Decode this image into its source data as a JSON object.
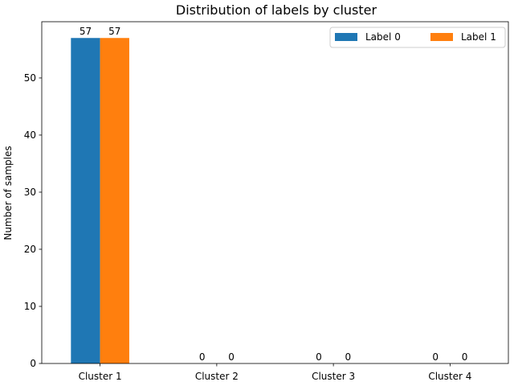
{
  "chart_data": {
    "type": "bar",
    "title": "Distribution of labels by cluster",
    "xlabel": "",
    "ylabel": "Number of samples",
    "categories": [
      "Cluster 1",
      "Cluster 2",
      "Cluster 3",
      "Cluster 4"
    ],
    "series": [
      {
        "name": "Label 0",
        "values": [
          57,
          0,
          0,
          0
        ],
        "color": "#1f77b4"
      },
      {
        "name": "Label 1",
        "values": [
          57,
          0,
          0,
          0
        ],
        "color": "#ff7f0e"
      }
    ],
    "ylim": [
      0,
      59.85
    ],
    "yticks": [
      0,
      10,
      20,
      30,
      40,
      50
    ],
    "data_labels": true,
    "grid": false,
    "legend_position": "top-right"
  }
}
